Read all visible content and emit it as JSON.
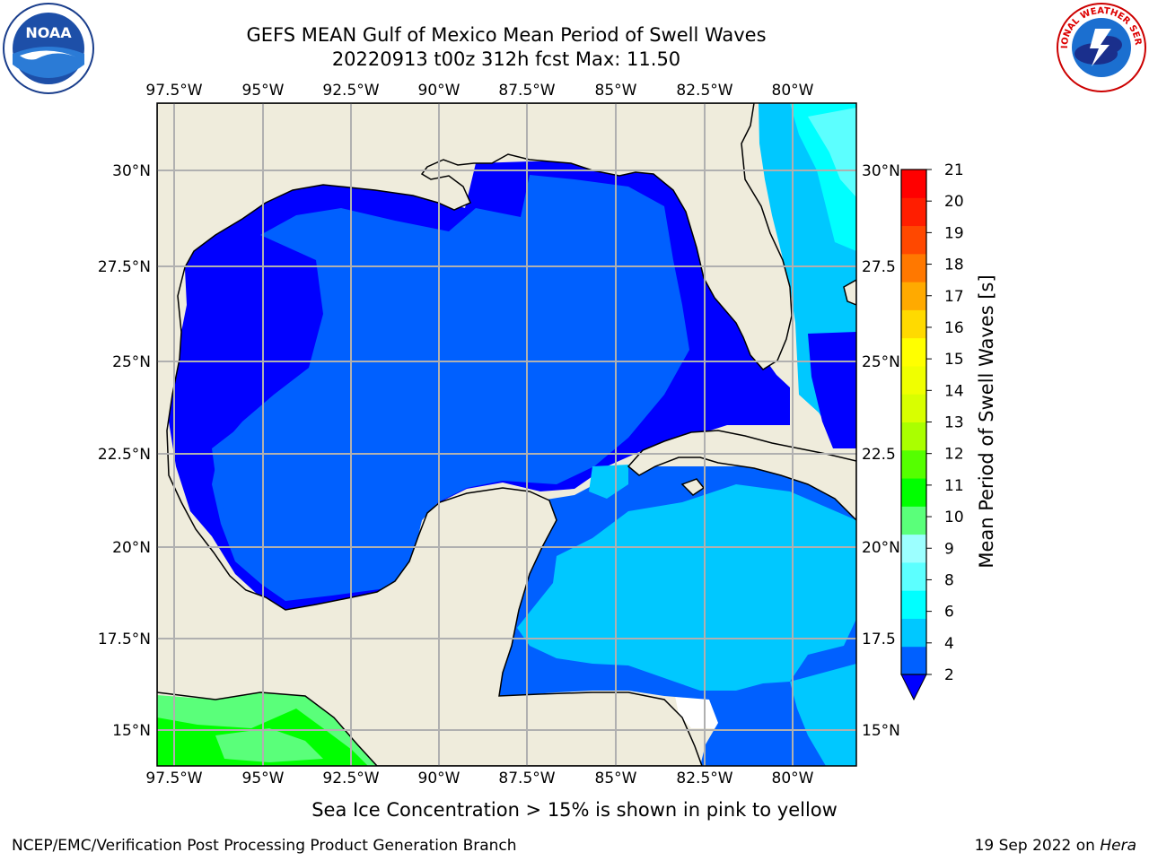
{
  "header": {
    "title_line1": "GEFS MEAN Gulf of Mexico Mean Period of Swell Waves",
    "title_line2": "20220913 t00z 312h fcst   Max: 11.50"
  },
  "logos": {
    "noaa": {
      "label": "NOAA"
    },
    "nws": {
      "label": "NATIONAL WEATHER SERVICE"
    }
  },
  "map": {
    "lon_ticks": [
      "97.5°W",
      "95°W",
      "92.5°W",
      "90°W",
      "87.5°W",
      "85°W",
      "82.5°W",
      "80°W"
    ],
    "lat_ticks_left": [
      "30°N",
      "27.5°N",
      "25°N",
      "22.5°N",
      "20°N",
      "17.5°N",
      "15°N"
    ],
    "lat_ticks_right": [
      "30°N",
      "27.5",
      "25°N",
      "22.5",
      "20°N",
      "17.5",
      "15°N"
    ],
    "colors": {
      "land": "#efecdc",
      "nodata": "#ffffff",
      "coast": "#000000",
      "grid": "#b0b0b0"
    }
  },
  "colorbar": {
    "label": "Mean Period of Swell Waves [s]",
    "tick_labels": [
      "2",
      "4",
      "6",
      "8",
      "9",
      "10",
      "11",
      "12",
      "13",
      "14",
      "15",
      "16",
      "17",
      "18",
      "19",
      "20",
      "21"
    ],
    "colors": [
      "#0060ff",
      "#00c8ff",
      "#00ffff",
      "#5cffff",
      "#9cffff",
      "#5aff7a",
      "#00ff00",
      "#55ff00",
      "#aaff00",
      "#d8ff00",
      "#f0ff00",
      "#ffff00",
      "#ffda00",
      "#ffaa00",
      "#ff7800",
      "#ff4800",
      "#ff1e00",
      "#ff0000"
    ],
    "under_color": "#0000ff"
  },
  "footer": {
    "note": "Sea Ice Concentration > 15% is shown in pink to yellow",
    "credit": "NCEP/EMC/Verification Post Processing Product Generation Branch",
    "date": "19 Sep 2022 on",
    "system": "Hera"
  }
}
